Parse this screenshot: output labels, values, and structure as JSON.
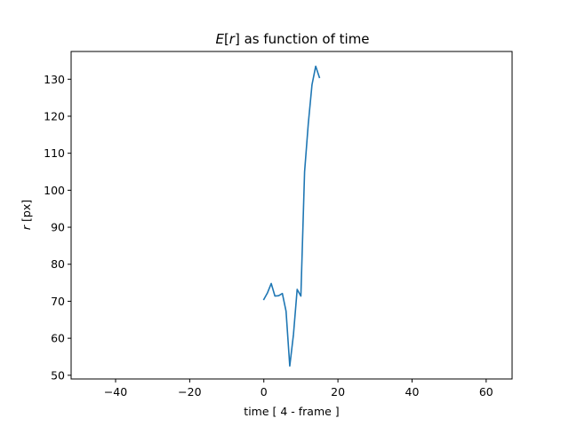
{
  "chart_data": {
    "type": "line",
    "title_prefix": "E",
    "title_bracket_open": "[",
    "title_var": "r",
    "title_bracket_close": "]",
    "title_suffix": " as function of time",
    "xlabel": "time [ 4 - frame ]",
    "ylabel_var": "r",
    "ylabel_suffix": " [px]",
    "xlim": [
      -52,
      67
    ],
    "ylim": [
      49,
      137.5
    ],
    "xticks": [
      -40,
      -20,
      0,
      20,
      40,
      60
    ],
    "xtick_labels": [
      "−40",
      "−20",
      "0",
      "20",
      "40",
      "60"
    ],
    "yticks": [
      50,
      60,
      70,
      80,
      90,
      100,
      110,
      120,
      130
    ],
    "ytick_labels": [
      "50",
      "60",
      "70",
      "80",
      "90",
      "100",
      "110",
      "120",
      "130"
    ],
    "grid": false,
    "series": [
      {
        "color": "#1f77b4",
        "x": [
          0,
          1,
          2,
          3,
          4,
          5,
          6,
          7,
          8,
          9,
          10,
          11,
          12,
          13,
          14,
          15
        ],
        "y": [
          70.5,
          72.3,
          74.8,
          71.4,
          71.5,
          72.1,
          67.3,
          52.5,
          61.0,
          73.2,
          71.4,
          105.0,
          118.0,
          128.5,
          133.5,
          130.5
        ]
      }
    ]
  }
}
